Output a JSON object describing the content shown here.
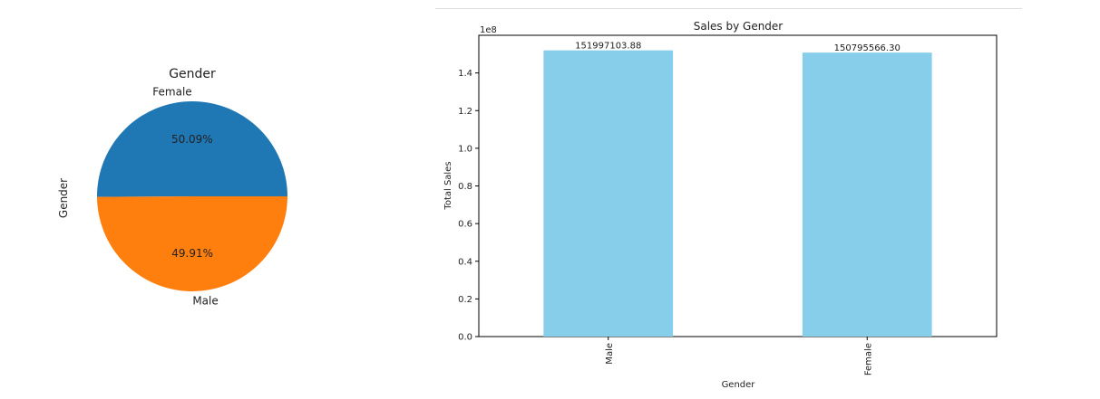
{
  "chart_data": [
    {
      "type": "pie",
      "title": "Gender",
      "ylabel": "Gender",
      "slices": [
        {
          "label": "Female",
          "value": 50.09,
          "pct_label": "50.09%",
          "color": "#1f77b4"
        },
        {
          "label": "Male",
          "value": 49.91,
          "pct_label": "49.91%",
          "color": "#ff7f0e"
        }
      ]
    },
    {
      "type": "bar",
      "title": "Sales by Gender",
      "xlabel": "Gender",
      "ylabel": "Total Sales",
      "categories": [
        "Male",
        "Female"
      ],
      "values": [
        151997103.88,
        150795566.3
      ],
      "data_labels": [
        "151997103.88",
        "150795566.30"
      ],
      "ylim": [
        0,
        160000000
      ],
      "yticks": [
        0,
        0.2,
        0.4,
        0.6,
        0.8,
        1.0,
        1.2,
        1.4
      ],
      "ytick_labels": [
        "0.0",
        "0.2",
        "0.4",
        "0.6",
        "0.8",
        "1.0",
        "1.2",
        "1.4"
      ],
      "offset_text": "1e8",
      "color": "#87ceeb",
      "grid": false
    }
  ]
}
